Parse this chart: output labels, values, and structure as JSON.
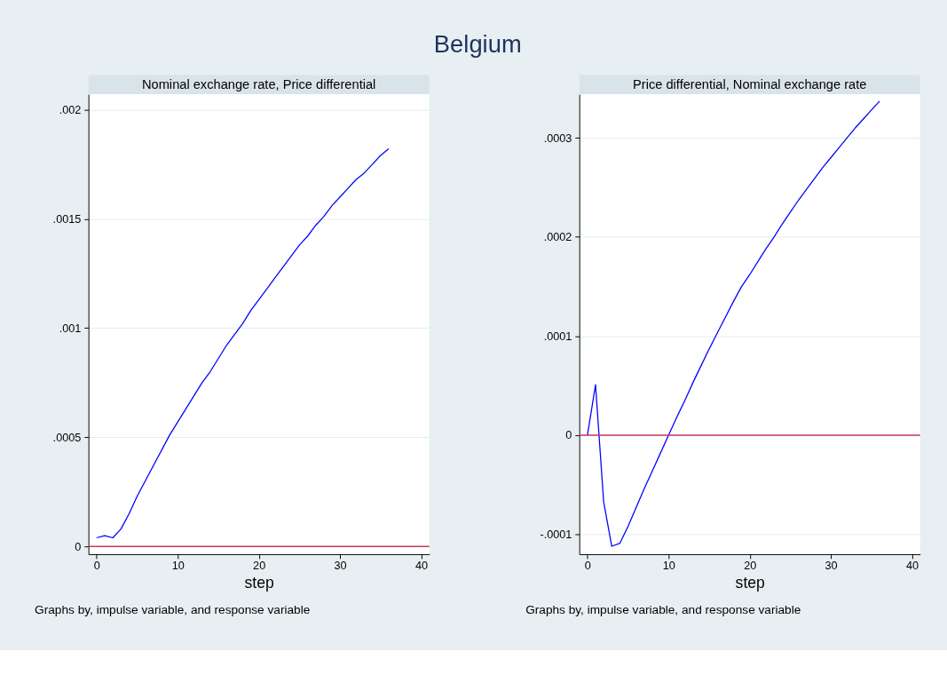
{
  "chart_data": [
    {
      "type": "line",
      "title": "Belgium",
      "subtitle": "Nominal exchange rate, Price differential",
      "xlabel": "step",
      "x": [
        0,
        1,
        2,
        3,
        4,
        5,
        6,
        7,
        8,
        9,
        10,
        11,
        12,
        13,
        14,
        15,
        16,
        17,
        18,
        19,
        20,
        21,
        22,
        23,
        24,
        25,
        26,
        27,
        28,
        29,
        30,
        31,
        32,
        33,
        34,
        35,
        36
      ],
      "series": [
        {
          "color": "#0000ff",
          "values": [
            4e-05,
            5e-05,
            4e-05,
            8e-05,
            0.00015,
            0.00023,
            0.0003,
            0.00037,
            0.00044,
            0.00051,
            0.00057,
            0.00063,
            0.00069,
            0.00075,
            0.0008,
            0.00086,
            0.00092,
            0.00097,
            0.00102,
            0.00108,
            0.00113,
            0.00118,
            0.00123,
            0.00128,
            0.00133,
            0.00138,
            0.00142,
            0.00147,
            0.00151,
            0.00156,
            0.0016,
            0.00164,
            0.00168,
            0.00171,
            0.00175,
            0.00179,
            0.00182
          ]
        }
      ],
      "xlim": [
        -1,
        41
      ],
      "xticks": [
        0,
        10,
        20,
        30,
        40
      ],
      "ylim": [
        -3.5e-05,
        0.00207
      ],
      "yticks": [
        {
          "value": 0,
          "label": "0"
        },
        {
          "value": 0.0005,
          "label": ".0005"
        },
        {
          "value": 0.001,
          "label": ".001"
        },
        {
          "value": 0.0015,
          "label": ".0015"
        },
        {
          "value": 0.002,
          "label": ".002"
        }
      ],
      "ref_lines": [
        {
          "axis": "y",
          "value": 0,
          "color": "#c8365a"
        }
      ],
      "grid": "y",
      "marker": "none",
      "line_style": "solid",
      "legend": false,
      "annotations": [
        "Graphs by, impulse variable, and response variable"
      ]
    },
    {
      "type": "line",
      "subtitle": "Price differential, Nominal exchange rate",
      "xlabel": "step",
      "x": [
        0,
        1,
        2,
        3,
        4,
        5,
        6,
        7,
        8,
        9,
        10,
        11,
        12,
        13,
        14,
        15,
        16,
        17,
        18,
        19,
        20,
        21,
        22,
        23,
        24,
        25,
        26,
        27,
        28,
        29,
        30,
        31,
        32,
        33,
        34,
        35,
        36
      ],
      "series": [
        {
          "color": "#0000ff",
          "values": [
            0,
            5.1e-05,
            -6.7e-05,
            -0.000112,
            -0.000109,
            -9.2e-05,
            -7.3e-05,
            -5.4e-05,
            -3.6e-05,
            -1.8e-05,
            0,
            1.8e-05,
            3.5e-05,
            5.3e-05,
            7e-05,
            8.7e-05,
            0.000103,
            0.000119,
            0.000135,
            0.00015,
            0.000162,
            0.000175,
            0.000188,
            0.0002,
            0.000213,
            0.000225,
            0.000237,
            0.000248,
            0.000259,
            0.00027,
            0.00028,
            0.00029,
            0.0003,
            0.00031,
            0.000319,
            0.000328,
            0.000337
          ]
        }
      ],
      "xlim": [
        -1,
        41
      ],
      "xticks": [
        0,
        10,
        20,
        30,
        40
      ],
      "ylim": [
        -0.00012,
        0.000344
      ],
      "yticks": [
        {
          "value": -0.0001,
          "label": "-.0001"
        },
        {
          "value": 0,
          "label": "0"
        },
        {
          "value": 0.0001,
          "label": ".0001"
        },
        {
          "value": 0.0002,
          "label": ".0002"
        },
        {
          "value": 0.0003,
          "label": ".0003"
        }
      ],
      "ref_lines": [
        {
          "axis": "y",
          "value": 0,
          "color": "#c8365a"
        }
      ],
      "grid": "y",
      "marker": "none",
      "line_style": "solid",
      "legend": false,
      "annotations": [
        "Graphs by, impulse variable, and response variable"
      ]
    }
  ]
}
